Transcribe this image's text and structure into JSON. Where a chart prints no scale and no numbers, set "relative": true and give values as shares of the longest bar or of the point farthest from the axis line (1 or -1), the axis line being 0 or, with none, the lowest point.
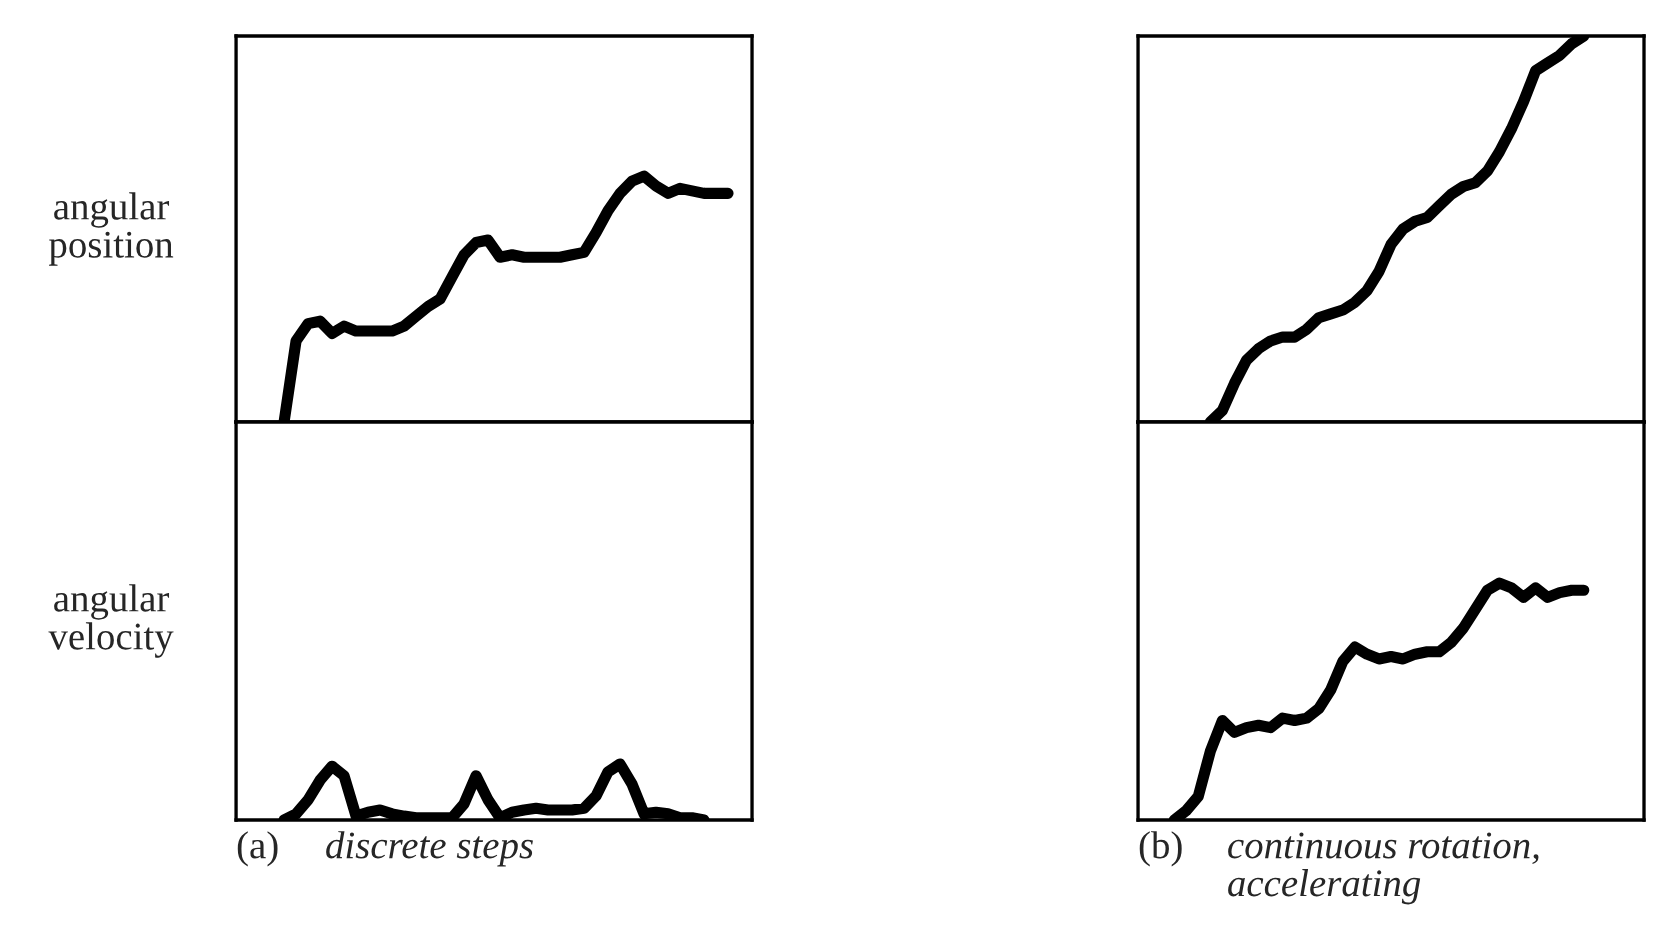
{
  "chart_data": [
    {
      "type": "line",
      "relative": true,
      "ylabel": "angular position",
      "categories": [
        null,
        null,
        null,
        null,
        null,
        null,
        null,
        null,
        null,
        null,
        null,
        null,
        null,
        null,
        null,
        null,
        null,
        null,
        null,
        null,
        null,
        null,
        null,
        null,
        null,
        null,
        null,
        null,
        null,
        null,
        null,
        null,
        null,
        null,
        null,
        null,
        null,
        null,
        null,
        null,
        null,
        null,
        null,
        null
      ],
      "series": [
        {
          "color": "#000000",
          "values": [
            null,
            null,
            null,
            null,
            0,
            0.33,
            0.4,
            0.41,
            0.36,
            0.39,
            0.37,
            0.37,
            0.37,
            0.37,
            0.39,
            0.43,
            0.47,
            0.5,
            0.59,
            0.68,
            0.73,
            0.74,
            0.67,
            0.68,
            0.67,
            0.67,
            0.67,
            0.67,
            0.68,
            0.69,
            0.77,
            0.86,
            0.93,
            0.98,
            1,
            0.96,
            0.93,
            0.95,
            0.94,
            0.93,
            0.93,
            0.93,
            null,
            null
          ]
        }
      ]
    },
    {
      "type": "line",
      "relative": true,
      "ylabel": "angular velocity",
      "annotations": [
        "(a)",
        "discrete steps"
      ],
      "categories": [
        null,
        null,
        null,
        null,
        null,
        null,
        null,
        null,
        null,
        null,
        null,
        null,
        null,
        null,
        null,
        null,
        null,
        null,
        null,
        null,
        null,
        null,
        null,
        null,
        null,
        null,
        null,
        null,
        null,
        null,
        null,
        null,
        null,
        null,
        null,
        null,
        null,
        null,
        null,
        null,
        null,
        null,
        null,
        null
      ],
      "series": [
        {
          "color": "#000000",
          "values": [
            null,
            null,
            null,
            null,
            0,
            0.11,
            0.36,
            0.71,
            0.96,
            0.79,
            0.07,
            0.14,
            0.18,
            0.11,
            0.07,
            0.04,
            0.04,
            0.04,
            0.04,
            0.29,
            0.79,
            0.36,
            0.04,
            0.14,
            0.18,
            0.21,
            0.18,
            0.18,
            0.18,
            0.21,
            0.43,
            0.86,
            1,
            0.64,
            0.11,
            0.14,
            0.11,
            0.04,
            0.04,
            0,
            null,
            null,
            null,
            null
          ]
        }
      ]
    },
    {
      "type": "line",
      "relative": true,
      "categories": [
        null,
        null,
        null,
        null,
        null,
        null,
        null,
        null,
        null,
        null,
        null,
        null,
        null,
        null,
        null,
        null,
        null,
        null,
        null,
        null,
        null,
        null,
        null,
        null,
        null,
        null,
        null,
        null,
        null,
        null,
        null,
        null,
        null,
        null,
        null,
        null,
        null,
        null,
        null,
        null,
        null,
        null,
        null
      ],
      "series": [
        {
          "color": "#000000",
          "values": [
            null,
            null,
            null,
            null,
            null,
            null,
            0,
            0.03,
            0.1,
            0.16,
            0.19,
            0.21,
            0.22,
            0.22,
            0.24,
            0.27,
            0.28,
            0.29,
            0.31,
            0.34,
            0.39,
            0.46,
            0.5,
            0.52,
            0.53,
            0.56,
            0.59,
            0.61,
            0.62,
            0.65,
            0.7,
            0.76,
            0.83,
            0.91,
            0.93,
            0.95,
            0.98,
            1,
            null,
            null,
            null,
            null,
            null
          ]
        }
      ]
    },
    {
      "type": "line",
      "relative": true,
      "annotations": [
        "(b)",
        "continuous rotation, accelerating"
      ],
      "categories": [
        null,
        null,
        null,
        null,
        null,
        null,
        null,
        null,
        null,
        null,
        null,
        null,
        null,
        null,
        null,
        null,
        null,
        null,
        null,
        null,
        null,
        null,
        null,
        null,
        null,
        null,
        null,
        null,
        null,
        null,
        null,
        null,
        null,
        null,
        null,
        null,
        null,
        null,
        null,
        null,
        null,
        null,
        null
      ],
      "series": [
        {
          "color": "#000000",
          "values": [
            null,
            null,
            null,
            0,
            0.04,
            0.1,
            0.29,
            0.42,
            0.37,
            0.39,
            0.4,
            0.39,
            0.43,
            0.42,
            0.43,
            0.47,
            0.55,
            0.67,
            0.73,
            0.7,
            0.68,
            0.69,
            0.68,
            0.7,
            0.71,
            0.71,
            0.75,
            0.81,
            0.89,
            0.97,
            1,
            0.98,
            0.94,
            0.98,
            0.94,
            0.96,
            0.97,
            0.97,
            null,
            null,
            null,
            null,
            null
          ]
        }
      ]
    }
  ]
}
